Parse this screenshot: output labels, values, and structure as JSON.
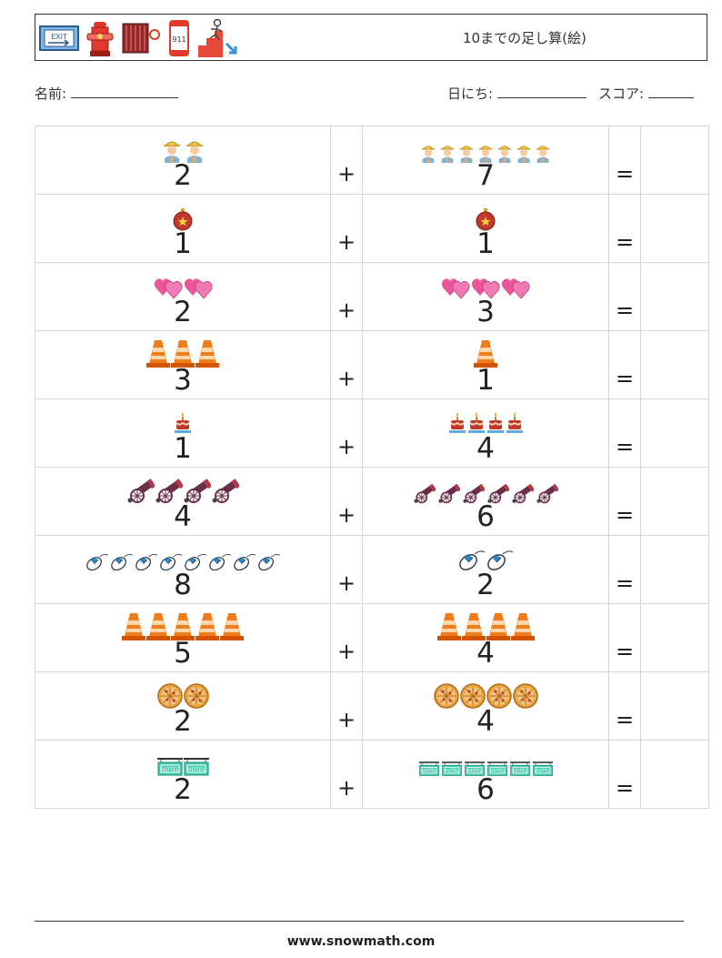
{
  "header": {
    "title": "10までの足し算(絵)",
    "icons": [
      "exit-sign-icon",
      "fire-hydrant-icon",
      "fire-hose-reel-icon",
      "emergency-911-phone-icon",
      "stair-evacuation-icon"
    ]
  },
  "fields": {
    "name_label": "名前:",
    "date_label": "日にち:",
    "score_label": "スコア:"
  },
  "operators": {
    "plus": "+",
    "equals": "="
  },
  "problems": [
    {
      "a": {
        "count": 2,
        "num": "2",
        "icon": "firefighter-icon"
      },
      "b": {
        "count": 7,
        "num": "7",
        "icon": "firefighter-icon"
      }
    },
    {
      "a": {
        "count": 1,
        "num": "1",
        "icon": "ornament-icon"
      },
      "b": {
        "count": 1,
        "num": "1",
        "icon": "ornament-icon"
      }
    },
    {
      "a": {
        "count": 2,
        "num": "2",
        "icon": "hearts-icon"
      },
      "b": {
        "count": 3,
        "num": "3",
        "icon": "hearts-icon"
      }
    },
    {
      "a": {
        "count": 3,
        "num": "3",
        "icon": "traffic-cone-icon"
      },
      "b": {
        "count": 1,
        "num": "1",
        "icon": "traffic-cone-icon"
      }
    },
    {
      "a": {
        "count": 1,
        "num": "1",
        "icon": "cake-icon"
      },
      "b": {
        "count": 4,
        "num": "4",
        "icon": "cake-icon"
      }
    },
    {
      "a": {
        "count": 4,
        "num": "4",
        "icon": "cannon-icon"
      },
      "b": {
        "count": 6,
        "num": "6",
        "icon": "cannon-icon"
      }
    },
    {
      "a": {
        "count": 8,
        "num": "8",
        "icon": "computer-mouse-icon"
      },
      "b": {
        "count": 2,
        "num": "2",
        "icon": "computer-mouse-icon"
      }
    },
    {
      "a": {
        "count": 5,
        "num": "5",
        "icon": "traffic-cone-icon"
      },
      "b": {
        "count": 4,
        "num": "4",
        "icon": "traffic-cone-icon"
      }
    },
    {
      "a": {
        "count": 2,
        "num": "2",
        "icon": "pizza-icon"
      },
      "b": {
        "count": 4,
        "num": "4",
        "icon": "pizza-icon"
      }
    },
    {
      "a": {
        "count": 2,
        "num": "2",
        "icon": "hotel-sign-icon"
      },
      "b": {
        "count": 6,
        "num": "6",
        "icon": "hotel-sign-icon"
      }
    }
  ],
  "footer": {
    "url": "www.snowmath.com"
  }
}
